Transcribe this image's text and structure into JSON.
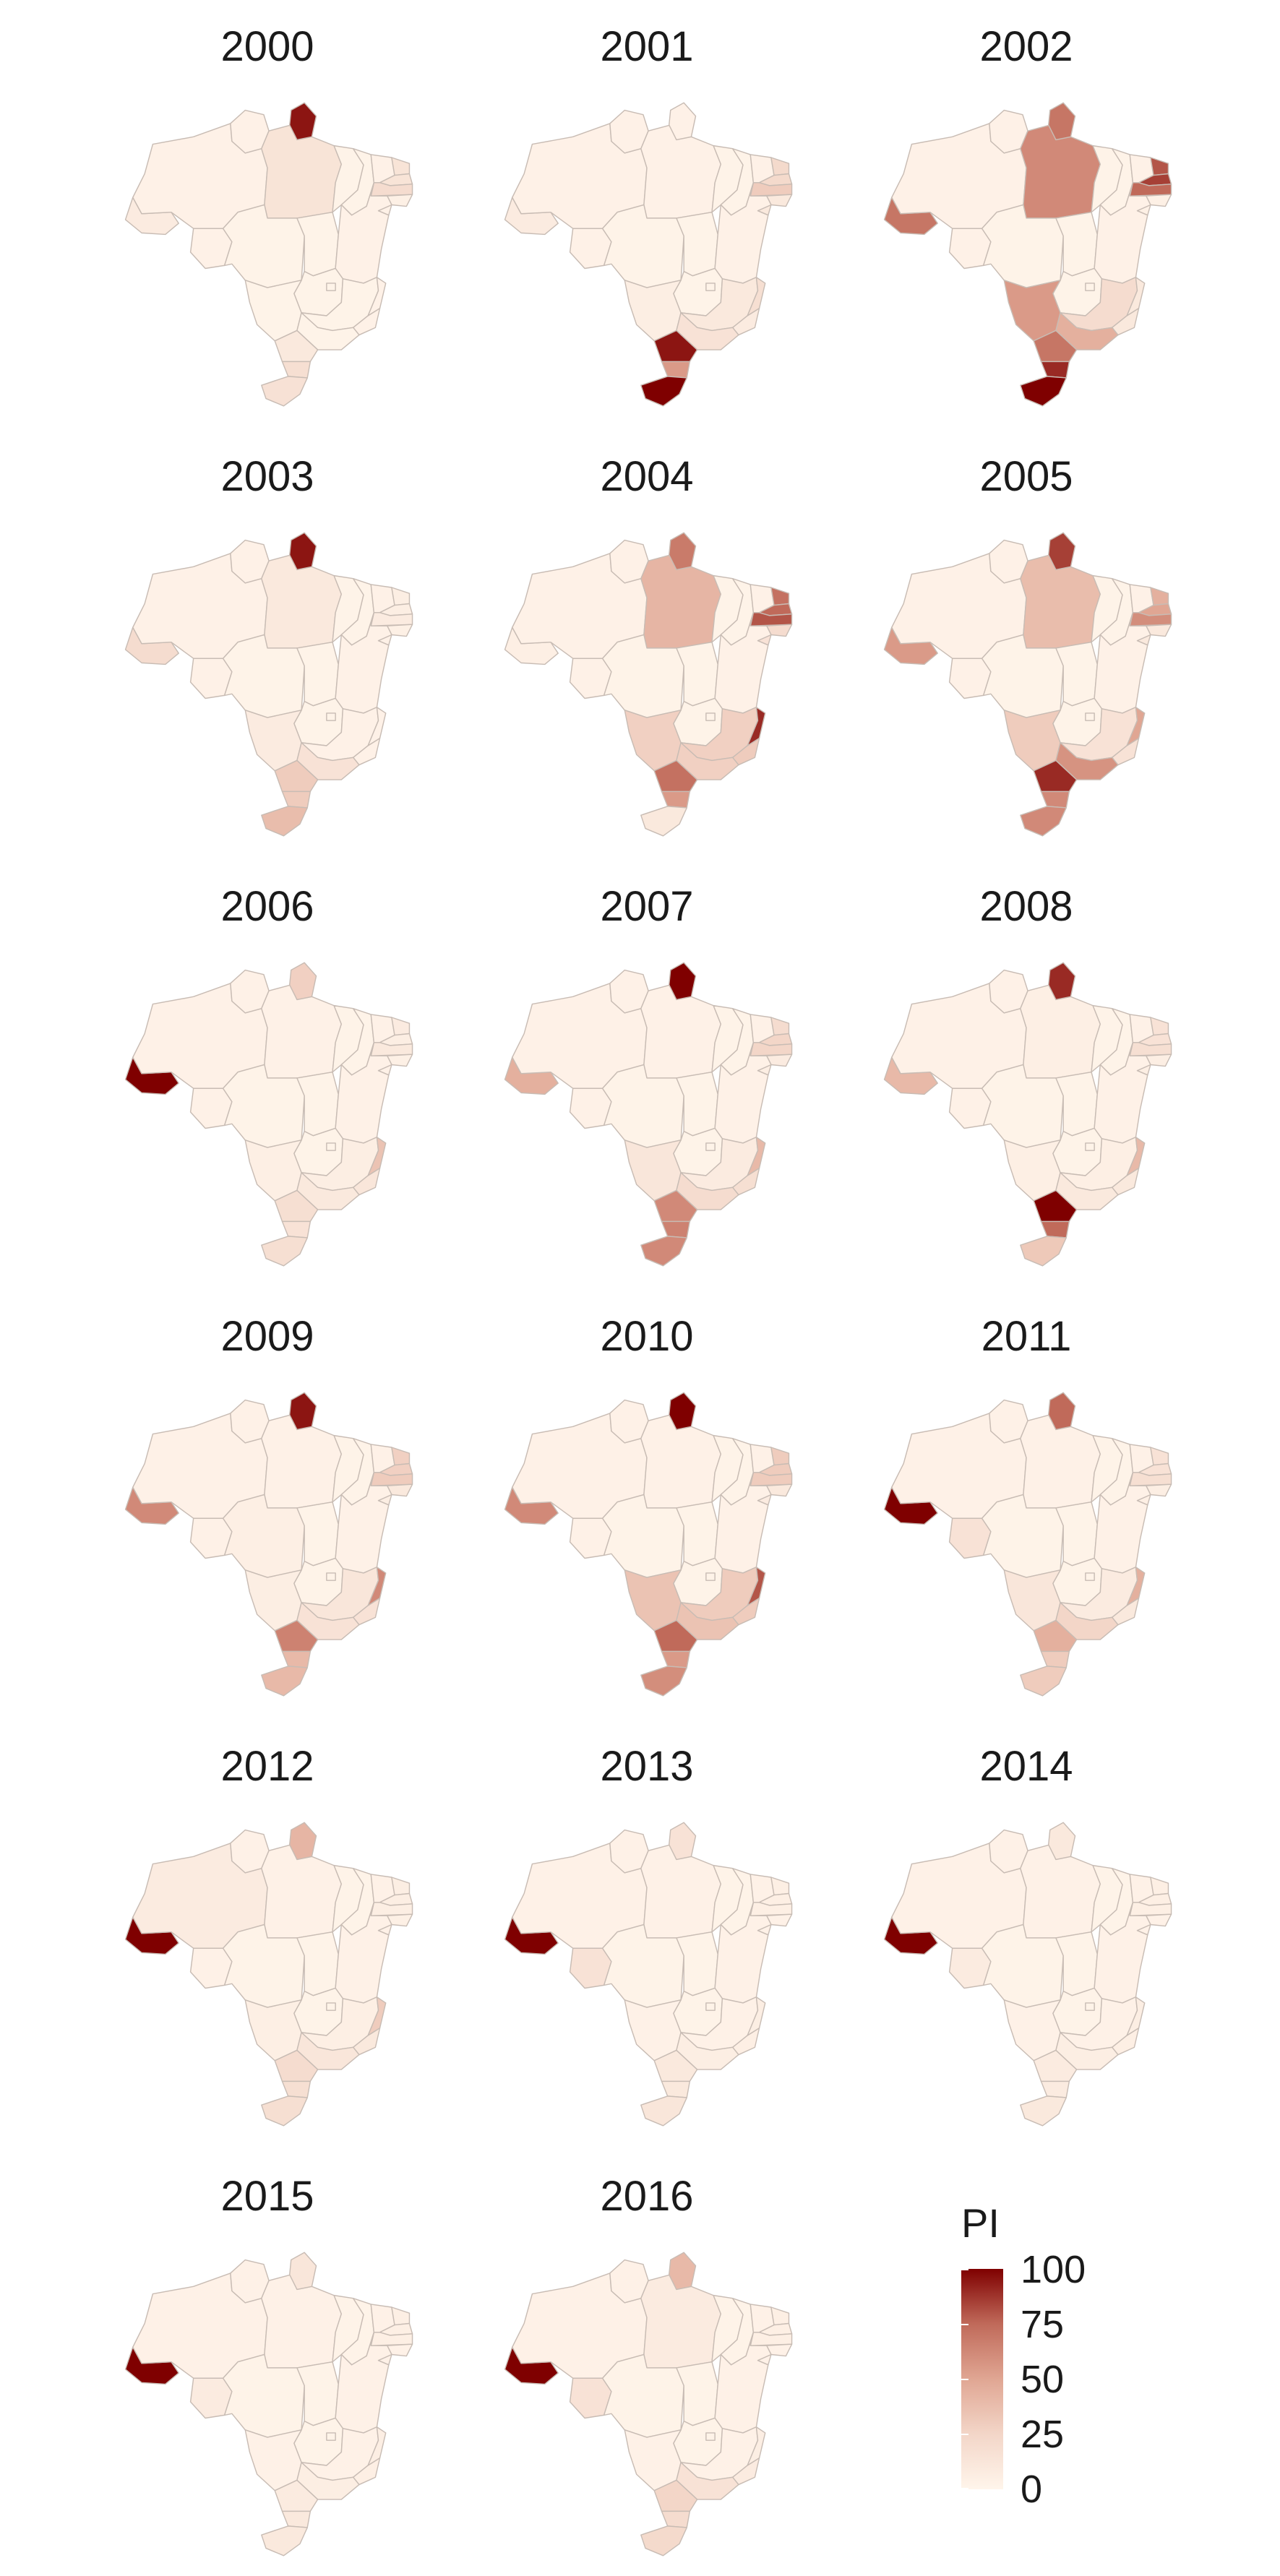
{
  "legend": {
    "title": "PI",
    "ticks": [
      "100",
      "75",
      "50",
      "25",
      "0"
    ],
    "scale_min": 0,
    "scale_max": 100,
    "color_low": "#fff5eb",
    "color_high": "#7f0000"
  },
  "map_data": {
    "type": "choropleth",
    "region": "Brazil (states)",
    "value_label": "PI",
    "states": [
      "AC",
      "AM",
      "RR",
      "PA",
      "AP",
      "RO",
      "MT",
      "TO",
      "MA",
      "PI",
      "CE",
      "RN",
      "PB",
      "PE",
      "AL",
      "SE",
      "BA",
      "GO",
      "DF",
      "MS",
      "MG",
      "ES",
      "RJ",
      "SP",
      "PR",
      "SC",
      "RS"
    ],
    "years": [
      {
        "year": "2000",
        "values": {
          "AC": 8,
          "AM": 3,
          "RR": 3,
          "PA": 14,
          "AP": 95,
          "RO": 3,
          "MT": 2,
          "TO": 2,
          "MA": 2,
          "PI": 2,
          "CE": 3,
          "RN": 14,
          "PB": 14,
          "PE": 20,
          "AL": 4,
          "SE": 3,
          "BA": 3,
          "GO": 2,
          "DF": 2,
          "MS": 2,
          "MG": 2,
          "ES": 3,
          "RJ": 3,
          "SP": 2,
          "PR": 10,
          "SC": 18,
          "RS": 16
        }
      },
      {
        "year": "2001",
        "values": {
          "AC": 8,
          "AM": 3,
          "RR": 3,
          "PA": 3,
          "AP": 3,
          "RO": 3,
          "MT": 2,
          "TO": 2,
          "MA": 2,
          "PI": 2,
          "CE": 3,
          "RN": 22,
          "PB": 22,
          "PE": 30,
          "AL": 10,
          "SE": 10,
          "BA": 3,
          "GO": 2,
          "DF": 2,
          "MS": 6,
          "MG": 10,
          "ES": 18,
          "RJ": 8,
          "SP": 15,
          "PR": 95,
          "SC": 55,
          "RS": 100
        }
      },
      {
        "year": "2002",
        "values": {
          "AC": 70,
          "AM": 3,
          "RR": 3,
          "PA": 62,
          "AP": 70,
          "RO": 3,
          "MT": 2,
          "TO": 2,
          "MA": 2,
          "PI": 2,
          "CE": 3,
          "RN": 80,
          "PB": 85,
          "PE": 75,
          "AL": 4,
          "SE": 4,
          "BA": 3,
          "GO": 2,
          "DF": 2,
          "MS": 55,
          "MG": 20,
          "ES": 10,
          "RJ": 10,
          "SP": 45,
          "PR": 70,
          "SC": 90,
          "RS": 100
        }
      },
      {
        "year": "2003",
        "values": {
          "AC": 20,
          "AM": 3,
          "RR": 3,
          "PA": 10,
          "AP": 95,
          "RO": 3,
          "MT": 2,
          "TO": 2,
          "MA": 2,
          "PI": 2,
          "CE": 3,
          "RN": 6,
          "PB": 6,
          "PE": 8,
          "AL": 4,
          "SE": 3,
          "BA": 3,
          "GO": 2,
          "DF": 2,
          "MS": 8,
          "MG": 3,
          "ES": 3,
          "RJ": 3,
          "SP": 15,
          "PR": 30,
          "SC": 30,
          "RS": 38
        }
      },
      {
        "year": "2004",
        "values": {
          "AC": 5,
          "AM": 3,
          "RR": 3,
          "PA": 42,
          "AP": 68,
          "RO": 3,
          "MT": 2,
          "TO": 2,
          "MA": 2,
          "PI": 2,
          "CE": 3,
          "RN": 72,
          "PB": 75,
          "PE": 80,
          "AL": 20,
          "SE": 15,
          "BA": 3,
          "GO": 2,
          "DF": 2,
          "MS": 28,
          "MG": 28,
          "ES": 90,
          "RJ": 30,
          "SP": 28,
          "PR": 72,
          "SC": 55,
          "RS": 10
        }
      },
      {
        "year": "2005",
        "values": {
          "AC": 55,
          "AM": 3,
          "RR": 3,
          "PA": 38,
          "AP": 85,
          "RO": 3,
          "MT": 2,
          "TO": 2,
          "MA": 2,
          "PI": 2,
          "CE": 3,
          "RN": 45,
          "PB": 50,
          "PE": 60,
          "AL": 10,
          "SE": 10,
          "BA": 3,
          "GO": 2,
          "DF": 2,
          "MS": 30,
          "MG": 15,
          "ES": 50,
          "RJ": 15,
          "SP": 58,
          "PR": 90,
          "SC": 62,
          "RS": 62
        }
      },
      {
        "year": "2006",
        "values": {
          "AC": 100,
          "AM": 3,
          "RR": 3,
          "PA": 3,
          "AP": 28,
          "RO": 3,
          "MT": 2,
          "TO": 2,
          "MA": 2,
          "PI": 2,
          "CE": 3,
          "RN": 8,
          "PB": 6,
          "PE": 10,
          "AL": 4,
          "SE": 3,
          "BA": 3,
          "GO": 2,
          "DF": 2,
          "MS": 5,
          "MG": 6,
          "ES": 35,
          "RJ": 12,
          "SP": 10,
          "PR": 18,
          "SC": 15,
          "RS": 18
        }
      },
      {
        "year": "2007",
        "values": {
          "AC": 45,
          "AM": 3,
          "RR": 3,
          "PA": 3,
          "AP": 100,
          "RO": 3,
          "MT": 2,
          "TO": 2,
          "MA": 2,
          "PI": 2,
          "CE": 3,
          "RN": 20,
          "PB": 25,
          "PE": 25,
          "AL": 8,
          "SE": 6,
          "BA": 3,
          "GO": 2,
          "DF": 2,
          "MS": 12,
          "MG": 8,
          "ES": 40,
          "RJ": 18,
          "SP": 20,
          "PR": 62,
          "SC": 65,
          "RS": 62
        }
      },
      {
        "year": "2008",
        "values": {
          "AC": 40,
          "AM": 3,
          "RR": 3,
          "PA": 5,
          "AP": 90,
          "RO": 3,
          "MT": 2,
          "TO": 2,
          "MA": 2,
          "PI": 2,
          "CE": 3,
          "RN": 15,
          "PB": 15,
          "PE": 18,
          "AL": 6,
          "SE": 6,
          "BA": 3,
          "GO": 2,
          "DF": 2,
          "MS": 5,
          "MG": 5,
          "ES": 40,
          "RJ": 10,
          "SP": 10,
          "PR": 100,
          "SC": 75,
          "RS": 32
        }
      },
      {
        "year": "2009",
        "values": {
          "AC": 62,
          "AM": 3,
          "RR": 3,
          "PA": 3,
          "AP": 95,
          "RO": 3,
          "MT": 5,
          "TO": 2,
          "MA": 2,
          "PI": 2,
          "CE": 3,
          "RN": 28,
          "PB": 28,
          "PE": 30,
          "AL": 10,
          "SE": 6,
          "BA": 3,
          "GO": 2,
          "DF": 2,
          "MS": 6,
          "MG": 12,
          "ES": 62,
          "RJ": 15,
          "SP": 15,
          "PR": 65,
          "SC": 40,
          "RS": 40
        }
      },
      {
        "year": "2010",
        "values": {
          "AC": 62,
          "AM": 3,
          "RR": 3,
          "PA": 3,
          "AP": 100,
          "RO": 3,
          "MT": 2,
          "TO": 2,
          "MA": 2,
          "PI": 2,
          "CE": 3,
          "RN": 30,
          "PB": 30,
          "PE": 30,
          "AL": 10,
          "SE": 8,
          "BA": 3,
          "GO": 2,
          "DF": 2,
          "MS": 35,
          "MG": 30,
          "ES": 80,
          "RJ": 30,
          "SP": 35,
          "PR": 75,
          "SC": 55,
          "RS": 60
        }
      },
      {
        "year": "2011",
        "values": {
          "AC": 100,
          "AM": 3,
          "RR": 3,
          "PA": 3,
          "AP": 75,
          "RO": 15,
          "MT": 2,
          "TO": 2,
          "MA": 2,
          "PI": 2,
          "CE": 3,
          "RN": 15,
          "PB": 15,
          "PE": 18,
          "AL": 6,
          "SE": 5,
          "BA": 3,
          "GO": 2,
          "DF": 2,
          "MS": 12,
          "MG": 8,
          "ES": 45,
          "RJ": 10,
          "SP": 25,
          "PR": 45,
          "SC": 30,
          "RS": 30
        }
      },
      {
        "year": "2012",
        "values": {
          "AC": 100,
          "AM": 8,
          "RR": 3,
          "PA": 3,
          "AP": 42,
          "RO": 3,
          "MT": 2,
          "TO": 2,
          "MA": 2,
          "PI": 2,
          "CE": 3,
          "RN": 6,
          "PB": 6,
          "PE": 6,
          "AL": 4,
          "SE": 3,
          "BA": 3,
          "GO": 2,
          "DF": 2,
          "MS": 5,
          "MG": 5,
          "ES": 30,
          "RJ": 10,
          "SP": 12,
          "PR": 20,
          "SC": 18,
          "RS": 18
        }
      },
      {
        "year": "2013",
        "values": {
          "AC": 100,
          "AM": 3,
          "RR": 3,
          "PA": 3,
          "AP": 15,
          "RO": 15,
          "MT": 2,
          "TO": 2,
          "MA": 2,
          "PI": 2,
          "CE": 3,
          "RN": 5,
          "PB": 5,
          "PE": 5,
          "AL": 3,
          "SE": 3,
          "BA": 3,
          "GO": 2,
          "DF": 2,
          "MS": 3,
          "MG": 3,
          "ES": 6,
          "RJ": 5,
          "SP": 6,
          "PR": 10,
          "SC": 10,
          "RS": 12
        }
      },
      {
        "year": "2014",
        "values": {
          "AC": 100,
          "AM": 3,
          "RR": 3,
          "PA": 3,
          "AP": 10,
          "RO": 8,
          "MT": 2,
          "TO": 2,
          "MA": 2,
          "PI": 2,
          "CE": 3,
          "RN": 5,
          "PB": 5,
          "PE": 5,
          "AL": 3,
          "SE": 3,
          "BA": 3,
          "GO": 2,
          "DF": 2,
          "MS": 3,
          "MG": 3,
          "ES": 6,
          "RJ": 5,
          "SP": 6,
          "PR": 8,
          "SC": 8,
          "RS": 10
        }
      },
      {
        "year": "2015",
        "values": {
          "AC": 100,
          "AM": 3,
          "RR": 3,
          "PA": 3,
          "AP": 12,
          "RO": 8,
          "MT": 2,
          "TO": 2,
          "MA": 2,
          "PI": 2,
          "CE": 3,
          "RN": 5,
          "PB": 5,
          "PE": 5,
          "AL": 3,
          "SE": 3,
          "BA": 3,
          "GO": 2,
          "DF": 2,
          "MS": 3,
          "MG": 3,
          "ES": 6,
          "RJ": 5,
          "SP": 6,
          "PR": 8,
          "SC": 10,
          "RS": 10
        }
      },
      {
        "year": "2016",
        "values": {
          "AC": 100,
          "AM": 3,
          "RR": 3,
          "PA": 8,
          "AP": 40,
          "RO": 15,
          "MT": 2,
          "TO": 2,
          "MA": 2,
          "PI": 2,
          "CE": 3,
          "RN": 5,
          "PB": 5,
          "PE": 5,
          "AL": 3,
          "SE": 3,
          "BA": 3,
          "GO": 2,
          "DF": 2,
          "MS": 3,
          "MG": 3,
          "ES": 6,
          "RJ": 8,
          "SP": 15,
          "PR": 25,
          "SC": 20,
          "RS": 22
        }
      }
    ]
  }
}
